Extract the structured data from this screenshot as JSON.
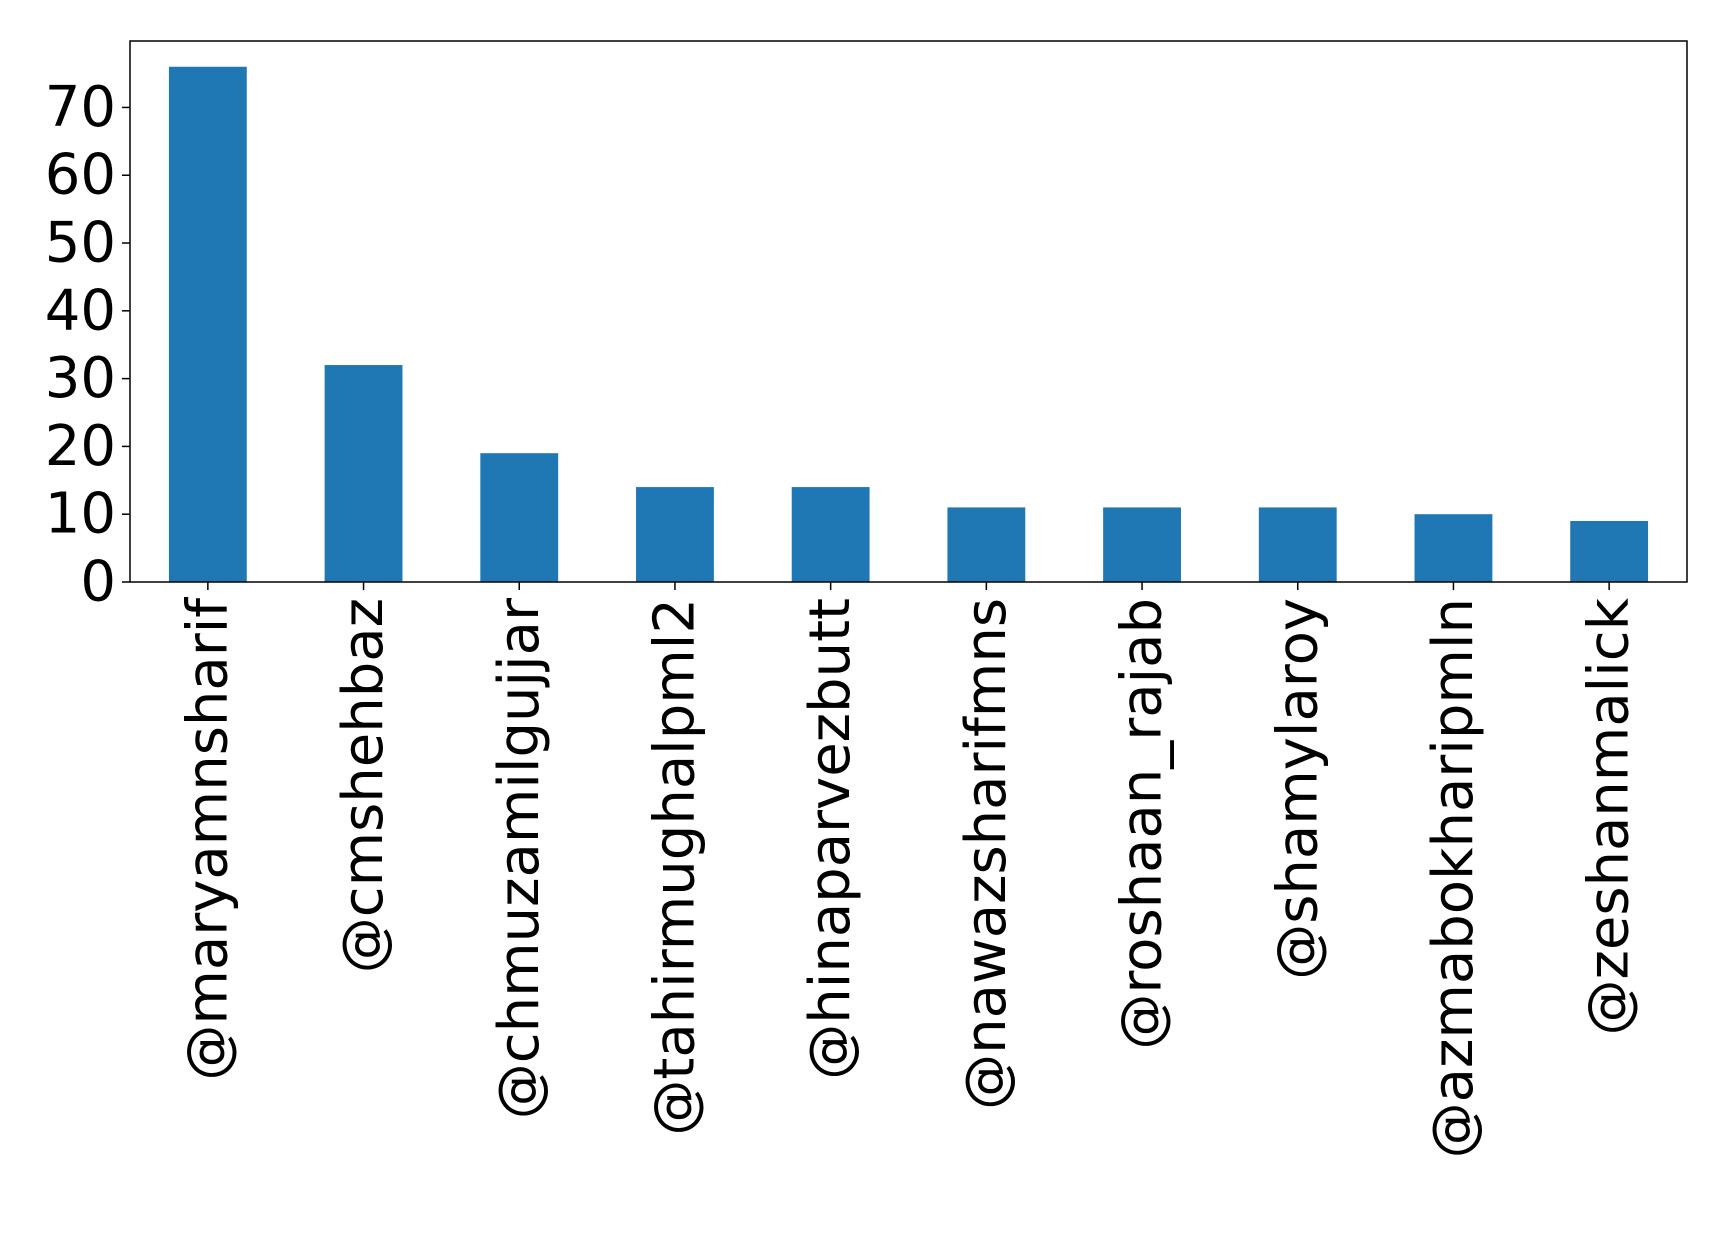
{
  "chart_data": {
    "type": "bar",
    "title": "",
    "xlabel": "",
    "ylabel": "",
    "categories": [
      "@maryamnsharif",
      "@cmshehbaz",
      "@chmuzamilgujjar",
      "@tahirmughalpml2",
      "@hinaparvezbutt",
      "@nawazsharifmns",
      "@roshaan_rajab",
      "@shamylaroy",
      "@azmabokharipmln",
      "@zeshanmalick"
    ],
    "values": [
      76,
      32,
      19,
      14,
      14,
      11,
      11,
      11,
      10,
      9
    ],
    "yticks": [
      "0",
      "10",
      "20",
      "30",
      "40",
      "50",
      "60",
      "70"
    ],
    "ylim": [
      0,
      79.8
    ],
    "grid": false,
    "legend": "none",
    "colors": {
      "bar": "#1f77b4",
      "axis": "#000000",
      "background": "#ffffff"
    }
  }
}
